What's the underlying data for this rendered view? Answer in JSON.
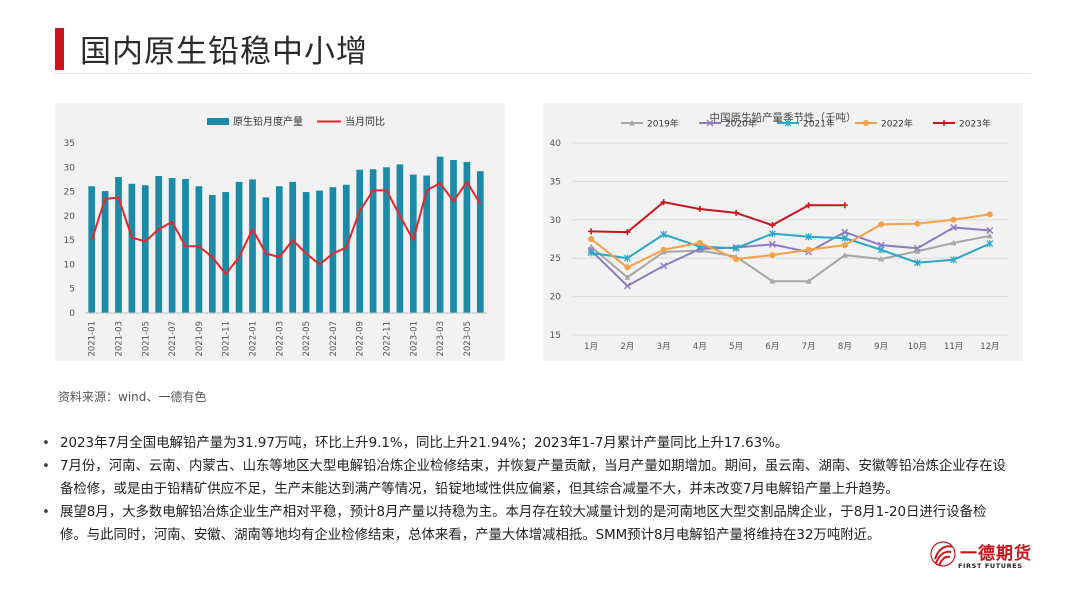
{
  "page": {
    "title": "国内原生铅稳中小增",
    "source": "资料来源：wind、一德有色",
    "bullets": [
      "2023年7月全国电解铅产量为31.97万吨，环比上升9.1%，同比上升21.94%；2023年1-7月累计产量同比上升17.63%。",
      "7月份，河南、云南、内蒙古、山东等地区大型电解铅冶炼企业检修结束，并恢复产量贡献，当月产量如期增加。期间，虽云南、湖南、安徽等铅冶炼企业存在设备检修，或是由于铅精矿供应不足，生产未能达到满产等情况，铅锭地域性供应偏紧，但其综合减量不大，并未改变7月电解铅产量上升趋势。",
      "展望8月，大多数电解铅冶炼企业生产相对平稳，预计8月产量以持稳为主。本月存在较大减量计划的是河南地区大型交割品牌企业，于8月1-20日进行设备检修。与此同时，河南、安徽、湖南等地均有企业检修结束，总体来看，产量大体增减相抵。SMM预计8月电解铅产量将维持在32万吨附近。"
    ],
    "logo": {
      "name": "一德期货",
      "sub": "FIRST FUTURES"
    },
    "colors": {
      "accent": "#c8161d"
    }
  },
  "chart_data": [
    {
      "type": "bar+line",
      "title": "",
      "legend": [
        "原生铅月度产量",
        "当月同比"
      ],
      "legend_position": "top",
      "categories": [
        "2021-01",
        "2021-02",
        "2021-03",
        "2021-04",
        "2021-05",
        "2021-06",
        "2021-07",
        "2021-08",
        "2021-09",
        "2021-10",
        "2021-11",
        "2021-12",
        "2022-01",
        "2022-02",
        "2022-03",
        "2022-04",
        "2022-05",
        "2022-06",
        "2022-07",
        "2022-08",
        "2022-09",
        "2022-10",
        "2022-11",
        "2022-12",
        "2023-01",
        "2023-02",
        "2023-03",
        "2023-04",
        "2023-05",
        "2023-06"
      ],
      "x_tick_labels": [
        "2021-01",
        "2021-03",
        "2021-05",
        "2021-07",
        "2021-09",
        "2021-11",
        "2022-01",
        "2022-03",
        "2022-05",
        "2022-07",
        "2022-09",
        "2022-11",
        "2023-01",
        "2023-03",
        "2023-05"
      ],
      "bar_values": [
        26.1,
        25.1,
        28.0,
        26.6,
        26.3,
        28.2,
        27.8,
        27.6,
        26.1,
        24.3,
        24.9,
        27.0,
        27.5,
        23.8,
        26.1,
        27.0,
        24.9,
        25.2,
        25.9,
        26.4,
        29.5,
        29.6,
        30.0,
        30.6,
        28.5,
        28.3,
        32.2,
        31.5,
        31.1,
        29.2
      ],
      "line_values": [
        0,
        17,
        17.5,
        1,
        -0.5,
        4.5,
        7.5,
        -2.5,
        -2.5,
        -7,
        -14,
        -7,
        4.5,
        -5.5,
        -7,
        0,
        -5.5,
        -10,
        -5.5,
        -3,
        12,
        20.5,
        20.5,
        10,
        0,
        20.5,
        23.5,
        16,
        24,
        15
      ],
      "ylim_left": [
        0,
        35
      ],
      "yticks_left": [
        0,
        5,
        10,
        15,
        20,
        25,
        30,
        35
      ],
      "ylim_right": [
        -30,
        40
      ],
      "yticks_right": [
        "-30%",
        "-20%",
        "-10%",
        "0%",
        "10%",
        "20%",
        "30%",
        "40%"
      ],
      "colors": {
        "bar": "#1b8aa6",
        "line": "#e8262b"
      }
    },
    {
      "type": "line",
      "title": "中国原生铅产量季节性（千吨）",
      "categories": [
        "1月",
        "2月",
        "3月",
        "4月",
        "5月",
        "6月",
        "7月",
        "8月",
        "9月",
        "10月",
        "11月",
        "12月"
      ],
      "ylim": [
        15,
        40
      ],
      "yticks": [
        15,
        20,
        25,
        30,
        35,
        40
      ],
      "legend_position": "top",
      "series": [
        {
          "name": "2019年",
          "color": "#a6a6a6",
          "marker": "triangle",
          "values": [
            26.5,
            22.5,
            25.8,
            26.0,
            25.2,
            22.0,
            22.0,
            25.4,
            24.9,
            25.9,
            27.0,
            27.9
          ]
        },
        {
          "name": "2020年",
          "color": "#8e7cc3",
          "marker": "x",
          "values": [
            26.0,
            21.4,
            24.0,
            26.2,
            26.4,
            26.8,
            25.8,
            28.4,
            26.7,
            26.3,
            29.0,
            28.6
          ]
        },
        {
          "name": "2021年",
          "color": "#2aa7c9",
          "marker": "star",
          "values": [
            25.7,
            25.0,
            28.1,
            26.5,
            26.3,
            28.2,
            27.8,
            27.6,
            26.1,
            24.4,
            24.8,
            26.9
          ]
        },
        {
          "name": "2022年",
          "color": "#f5a04a",
          "marker": "circle",
          "values": [
            27.5,
            23.8,
            26.1,
            27.0,
            24.9,
            25.4,
            26.1,
            26.7,
            29.4,
            29.5,
            30.0,
            30.7
          ]
        },
        {
          "name": "2023年",
          "color": "#c8161d",
          "marker": "plus",
          "values": [
            28.5,
            28.4,
            32.3,
            31.4,
            30.9,
            29.3,
            31.9,
            31.9,
            null,
            null,
            null,
            null
          ]
        }
      ]
    }
  ]
}
